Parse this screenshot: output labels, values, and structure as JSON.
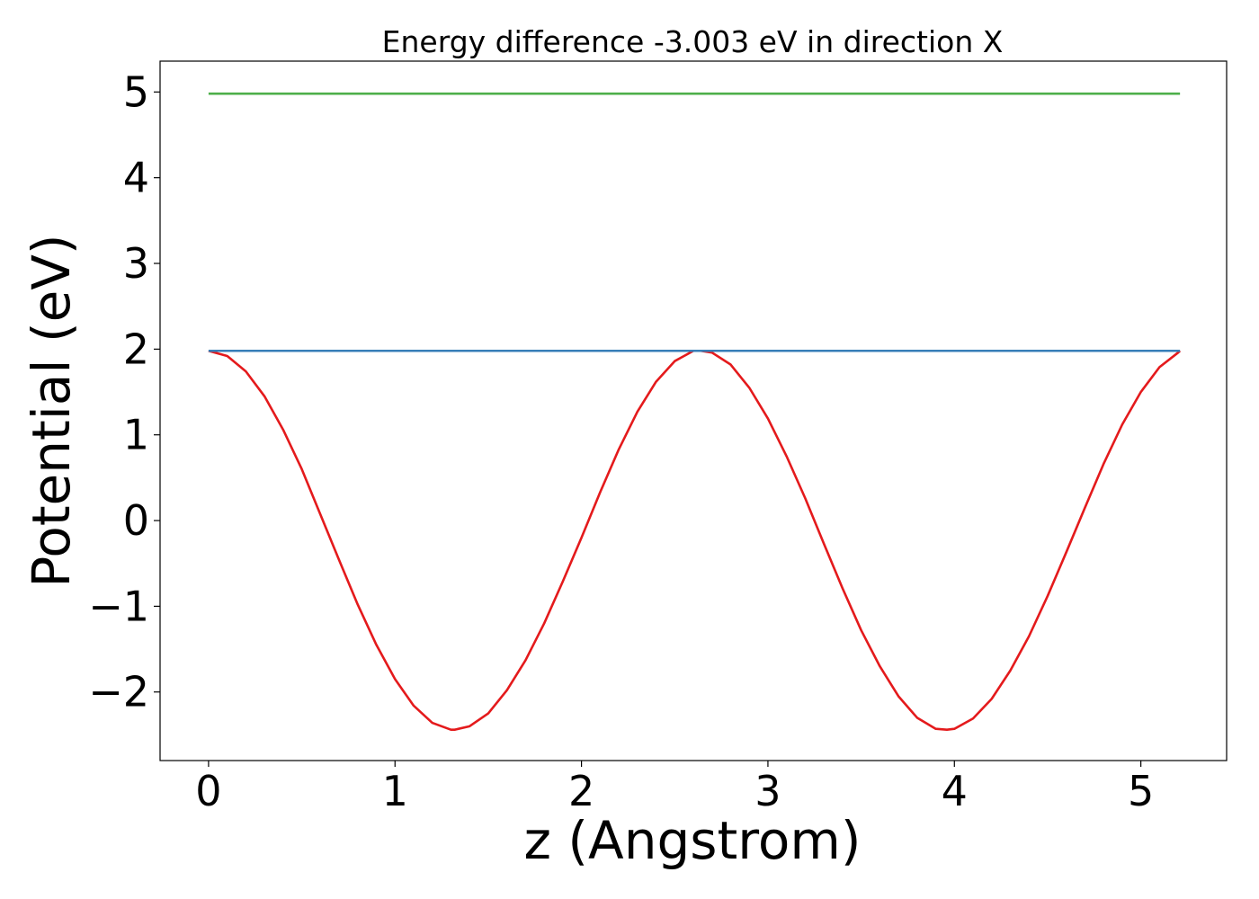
{
  "chart_data": {
    "type": "line",
    "title": "Energy difference -3.003 eV in direction X",
    "xlabel": "z (Angstrom)",
    "ylabel": "Potential (eV)",
    "xlim": [
      -0.26,
      5.46
    ],
    "ylim": [
      -2.8,
      5.36
    ],
    "xticks": [
      0,
      1,
      2,
      3,
      4,
      5
    ],
    "xtick_labels": [
      "0",
      "1",
      "2",
      "3",
      "4",
      "5"
    ],
    "yticks": [
      -2,
      -1,
      0,
      1,
      2,
      3,
      4,
      5
    ],
    "ytick_labels": [
      "−2",
      "−1",
      "0",
      "1",
      "2",
      "3",
      "4",
      "5"
    ],
    "grid": false,
    "legend": "none",
    "series": [
      {
        "color": "#e41a1c",
        "x": [
          0,
          0.1,
          0.2,
          0.3,
          0.4,
          0.5,
          0.6,
          0.7,
          0.8,
          0.9,
          1.0,
          1.1,
          1.2,
          1.3,
          1.32,
          1.4,
          1.5,
          1.6,
          1.7,
          1.8,
          1.9,
          2.0,
          2.1,
          2.2,
          2.3,
          2.4,
          2.5,
          2.6,
          2.64,
          2.7,
          2.8,
          2.9,
          3.0,
          3.1,
          3.2,
          3.3,
          3.4,
          3.5,
          3.6,
          3.7,
          3.8,
          3.9,
          3.96,
          4.0,
          4.1,
          4.2,
          4.3,
          4.4,
          4.5,
          4.6,
          4.7,
          4.8,
          4.9,
          5.0,
          5.1,
          5.2,
          5.21
        ],
        "y": [
          1.98,
          1.92,
          1.74,
          1.45,
          1.06,
          0.6,
          0.07,
          -0.46,
          -0.98,
          -1.45,
          -1.85,
          -2.16,
          -2.36,
          -2.44,
          -2.44,
          -2.4,
          -2.25,
          -1.98,
          -1.63,
          -1.2,
          -0.71,
          -0.2,
          0.33,
          0.83,
          1.27,
          1.62,
          1.86,
          1.98,
          1.98,
          1.96,
          1.82,
          1.55,
          1.19,
          0.75,
          0.26,
          -0.27,
          -0.79,
          -1.28,
          -1.7,
          -2.05,
          -2.3,
          -2.43,
          -2.44,
          -2.43,
          -2.31,
          -2.08,
          -1.75,
          -1.35,
          -0.88,
          -0.37,
          0.15,
          0.66,
          1.12,
          1.5,
          1.79,
          1.96,
          1.98
        ]
      },
      {
        "color": "#377eb8",
        "x": [
          0,
          5.21
        ],
        "y": [
          1.98,
          1.98
        ]
      },
      {
        "color": "#4daf4a",
        "x": [
          0,
          5.21
        ],
        "y": [
          4.98,
          4.98
        ]
      }
    ]
  }
}
